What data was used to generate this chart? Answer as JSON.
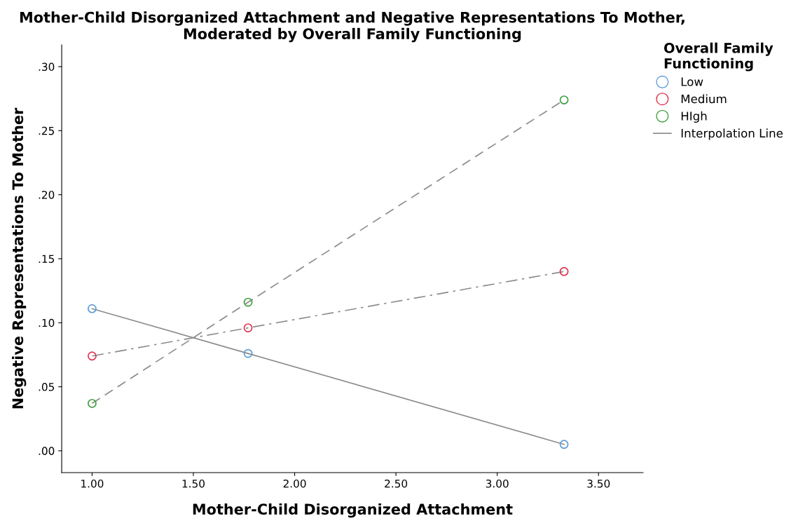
{
  "chart_data": {
    "type": "line",
    "title": "Mother-Child Disorganized Attachment and Negative Representations To Mother,\nModerated by Overall Family Functioning",
    "xlabel": "Mother-Child Disorganized Attachment",
    "ylabel": "Negative Representations To Mother",
    "legend_title": "Overall Family Functioning",
    "x": [
      1.0,
      1.77,
      3.33
    ],
    "series": [
      {
        "name": "Low",
        "color": "#5b9bd5",
        "values": [
          0.111,
          0.076,
          0.005
        ],
        "line_style": "solid",
        "marker": "circle"
      },
      {
        "name": "Medium",
        "color": "#e0324f",
        "values": [
          0.074,
          0.096,
          0.14
        ],
        "line_style": "dashdot",
        "marker": "circle"
      },
      {
        "name": "HIgh",
        "color": "#3e9e3e",
        "values": [
          0.037,
          0.116,
          0.274
        ],
        "line_style": "dashed",
        "marker": "circle"
      },
      {
        "name": "Interpolation Line",
        "color": "#8c8c8c",
        "values": [
          null,
          null,
          null
        ],
        "line_style": "solid",
        "marker": "none"
      }
    ],
    "xlim": [
      0.85,
      3.72
    ],
    "xticks": [
      {
        "value": 1.0,
        "label": "1.00"
      },
      {
        "value": 1.5,
        "label": "1.50"
      },
      {
        "value": 2.0,
        "label": "2.00"
      },
      {
        "value": 2.5,
        "label": "2.50"
      },
      {
        "value": 3.0,
        "label": "3.00"
      },
      {
        "value": 3.5,
        "label": "3.50"
      }
    ],
    "ylim": [
      -0.017,
      0.317
    ],
    "yticks": [
      {
        "value": 0.0,
        "label": ".00"
      },
      {
        "value": 0.05,
        "label": ".05"
      },
      {
        "value": 0.1,
        "label": ".10"
      },
      {
        "value": 0.15,
        "label": ".15"
      },
      {
        "value": 0.2,
        "label": ".20"
      },
      {
        "value": 0.25,
        "label": ".25"
      },
      {
        "value": 0.3,
        "label": ".30"
      }
    ],
    "grid": false,
    "legend": "top right"
  }
}
